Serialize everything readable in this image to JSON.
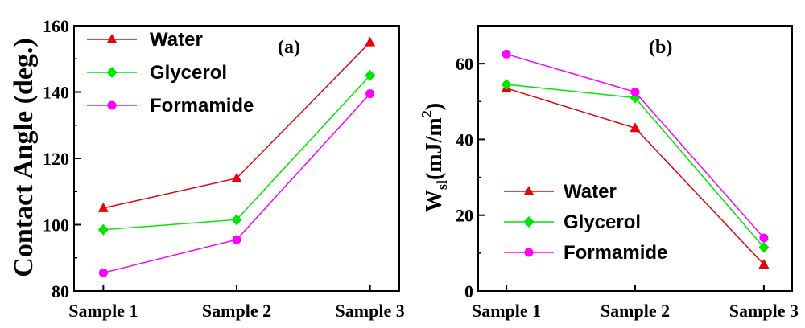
{
  "chart_data": [
    {
      "type": "line",
      "panel_label": "(a)",
      "ylabel": "Contact Angle (deg.)",
      "xlabel": "",
      "categories": [
        "Sample 1",
        "Sample 2",
        "Sample 3"
      ],
      "ylim": [
        80,
        160
      ],
      "yticks": [
        80,
        100,
        120,
        140,
        160
      ],
      "legend_position": "top-left",
      "series": [
        {
          "name": "Water",
          "values": [
            105,
            114,
            155
          ],
          "color": "#e8000b",
          "marker": "triangle"
        },
        {
          "name": "Glycerol",
          "values": [
            98.5,
            101.5,
            145
          ],
          "color": "#00e600",
          "marker": "diamond"
        },
        {
          "name": "Formamide",
          "values": [
            85.5,
            95.5,
            139.5
          ],
          "color": "#ff00ff",
          "marker": "circle"
        }
      ]
    },
    {
      "type": "line",
      "panel_label": "(b)",
      "ylabel": "W",
      "ylabel_sub": "sl",
      "ylabel_rest": "(mJ/m",
      "ylabel_sup": "2",
      "ylabel_end": ")",
      "xlabel": "",
      "categories": [
        "Sample 1",
        "Sample 2",
        "Sample 3"
      ],
      "ylim": [
        0,
        70
      ],
      "yticks": [
        0,
        20,
        40,
        60
      ],
      "legend_position": "bottom-left",
      "series": [
        {
          "name": "Water",
          "values": [
            53.5,
            43,
            7
          ],
          "color": "#e8000b",
          "marker": "triangle"
        },
        {
          "name": "Glycerol",
          "values": [
            54.5,
            51,
            11.5
          ],
          "color": "#00e600",
          "marker": "diamond"
        },
        {
          "name": "Formamide",
          "values": [
            62.5,
            52.5,
            14
          ],
          "color": "#ff00ff",
          "marker": "circle"
        }
      ]
    }
  ]
}
